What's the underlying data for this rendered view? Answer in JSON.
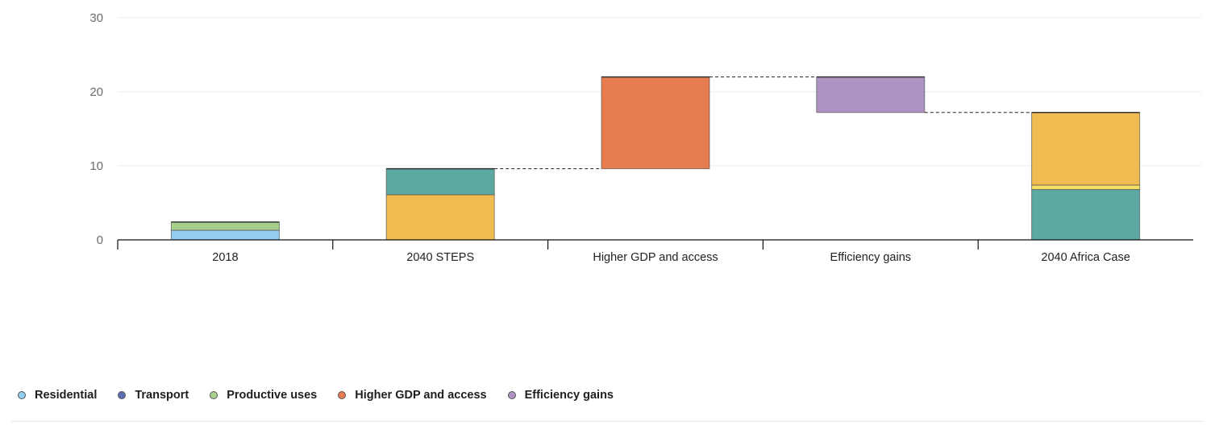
{
  "chart_data": {
    "type": "bar",
    "subtype": "waterfall-stacked",
    "title": "",
    "xlabel": "",
    "ylabel": "",
    "ylim": [
      0,
      30
    ],
    "yticks": [
      0,
      10,
      20,
      30
    ],
    "grid": true,
    "categories": [
      "2018",
      "2040 STEPS",
      "Higher GDP and access",
      "Efficiency gains",
      "2040 Africa Case"
    ],
    "stacks": [
      {
        "category": "2018",
        "segments": [
          {
            "series": "Residential",
            "from": 0,
            "to": 1.3,
            "color": "#92cdef"
          },
          {
            "series": "Productive uses",
            "from": 1.3,
            "to": 2.4,
            "color": "#a8d08d"
          }
        ]
      },
      {
        "category": "2040 STEPS",
        "segments": [
          {
            "series": "Segment (yellow)",
            "from": 0,
            "to": 6.1,
            "color": "#f0bb50"
          },
          {
            "series": "Segment (teal)",
            "from": 6.1,
            "to": 9.6,
            "color": "#5ba9a0"
          }
        ]
      },
      {
        "category": "Higher GDP and access",
        "segments": [
          {
            "series": "Higher GDP and access",
            "from": 9.6,
            "to": 22.0,
            "color": "#e67c50"
          }
        ]
      },
      {
        "category": "Efficiency gains",
        "segments": [
          {
            "series": "Efficiency gains",
            "from": 17.2,
            "to": 22.0,
            "color": "#ac93c4"
          }
        ]
      },
      {
        "category": "2040 Africa Case",
        "segments": [
          {
            "series": "Segment (teal)",
            "from": 0,
            "to": 6.8,
            "color": "#5ba9a0"
          },
          {
            "series": "Segment (light yellow)",
            "from": 6.8,
            "to": 7.4,
            "color": "#f5e163"
          },
          {
            "series": "Segment (yellow)",
            "from": 7.4,
            "to": 17.2,
            "color": "#f0bb50"
          }
        ]
      }
    ],
    "connectors": [
      {
        "from_category": "2040 STEPS",
        "to_category": "Higher GDP and access",
        "value": 9.6
      },
      {
        "from_category": "Higher GDP and access",
        "to_category": "Efficiency gains",
        "value": 22.0
      },
      {
        "from_category": "Efficiency gains",
        "to_category": "2040 Africa Case",
        "value": 17.2
      }
    ],
    "legend": {
      "placement": "bottom-left",
      "entries": [
        {
          "label": "Residential",
          "color": "#92cdef"
        },
        {
          "label": "Transport",
          "color": "#5b6fb0"
        },
        {
          "label": "Productive uses",
          "color": "#a8d08d"
        },
        {
          "label": "Higher GDP and access",
          "color": "#e67c50"
        },
        {
          "label": "Efficiency gains",
          "color": "#ac93c4"
        }
      ]
    }
  }
}
